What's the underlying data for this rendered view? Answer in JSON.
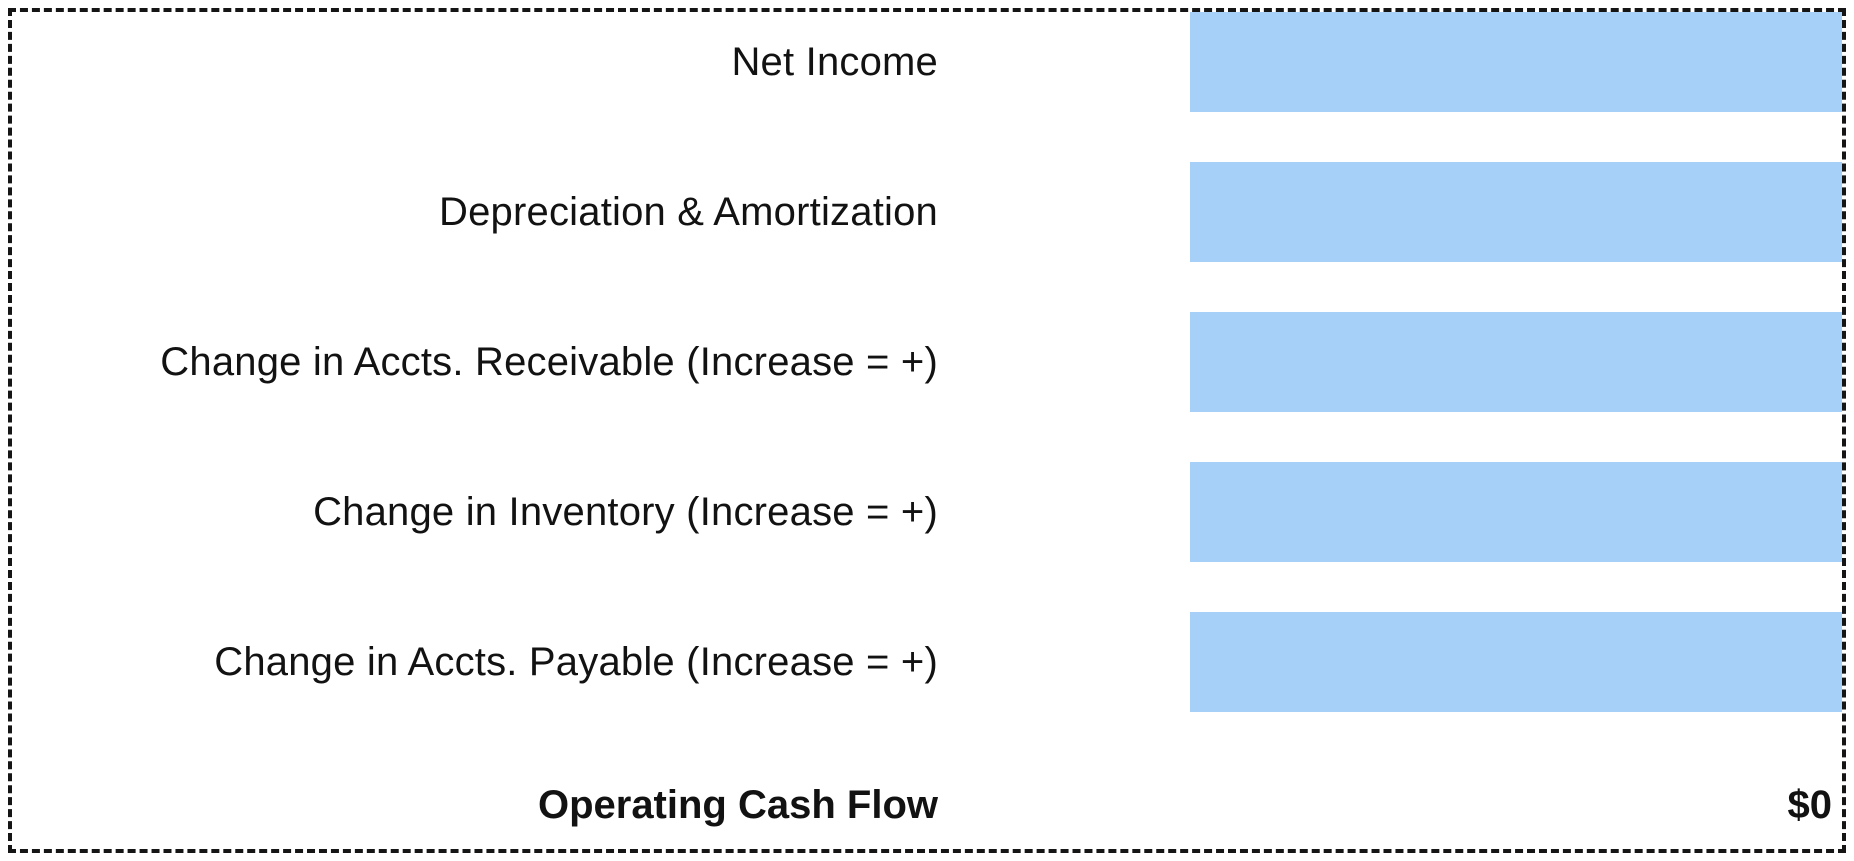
{
  "form": {
    "rows": [
      {
        "label": "Net Income",
        "value": ""
      },
      {
        "label": "Depreciation & Amortization",
        "value": ""
      },
      {
        "label": "Change in Accts. Receivable (Increase = +)",
        "value": ""
      },
      {
        "label": "Change in Inventory (Increase = +)",
        "value": ""
      },
      {
        "label": "Change in Accts. Payable (Increase = +)",
        "value": ""
      }
    ],
    "total": {
      "label": "Operating Cash Flow",
      "value": "$0"
    }
  },
  "colors": {
    "input_background": "#a6d0f7",
    "text": "#121212",
    "border": "#151515"
  }
}
